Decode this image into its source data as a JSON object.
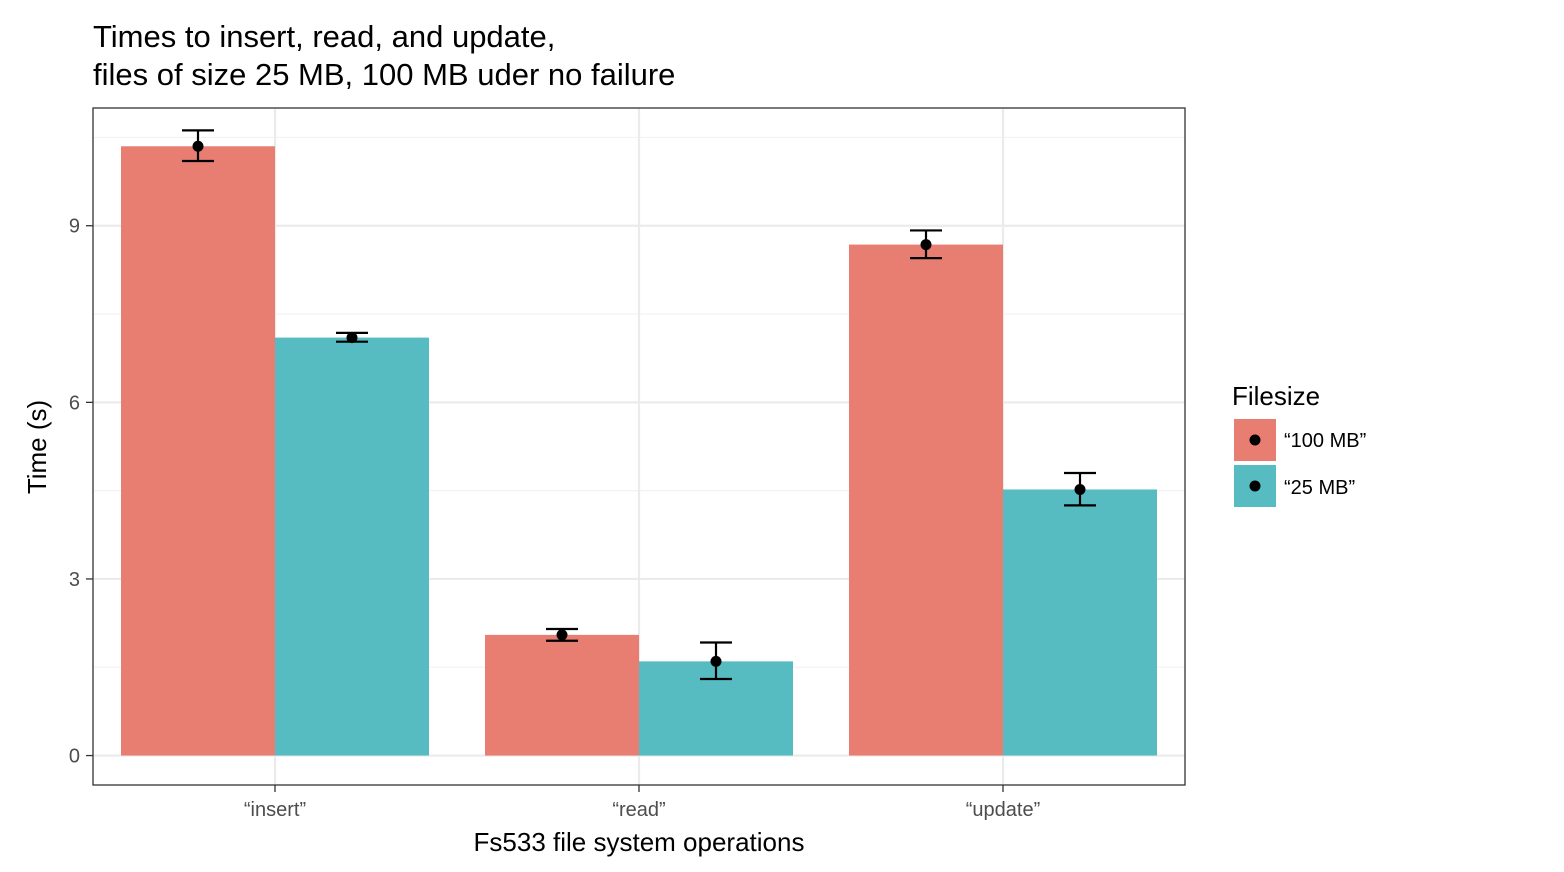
{
  "chart_data": {
    "type": "bar",
    "title_lines": [
      "Times to insert, read, and update,",
      "files of size 25 MB, 100 MB uder no failure"
    ],
    "xlabel": "Fs533 file system operations",
    "ylabel": "Time (s)",
    "categories": [
      "“insert”",
      "“read”",
      "“update”"
    ],
    "yticks": [
      0,
      3,
      6,
      9
    ],
    "ylim": [
      -0.5,
      11.0
    ],
    "grid": true,
    "legend": {
      "title": "Filesize",
      "placement": "right"
    },
    "series": [
      {
        "name": "“100 MB”",
        "color": "#E87D72",
        "values": [
          10.35,
          2.05,
          8.68
        ],
        "error_low": [
          10.1,
          1.95,
          8.45
        ],
        "error_high": [
          10.62,
          2.15,
          8.92
        ]
      },
      {
        "name": "“25 MB”",
        "color": "#56BCC2",
        "values": [
          7.1,
          1.6,
          4.52
        ],
        "error_low": [
          7.03,
          1.3,
          4.25
        ],
        "error_high": [
          7.18,
          1.92,
          4.8
        ]
      }
    ]
  }
}
